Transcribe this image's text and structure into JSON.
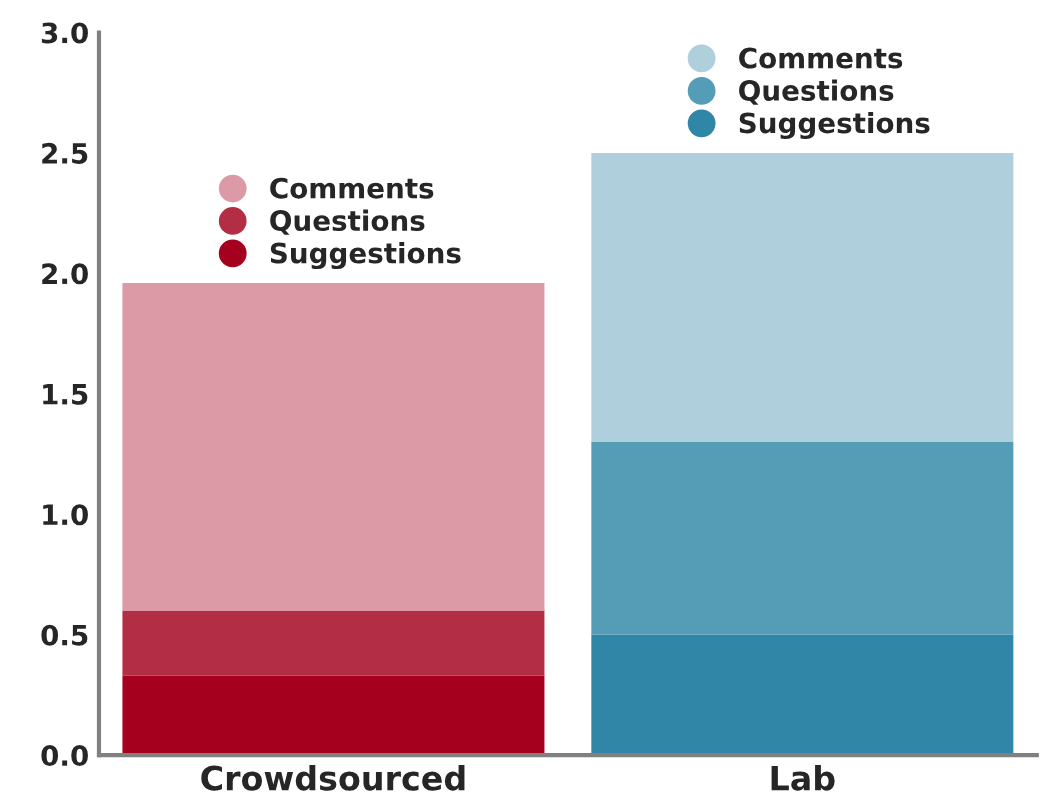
{
  "chart_data": {
    "type": "bar",
    "stacked": true,
    "categories": [
      "Crowdsourced",
      "Lab"
    ],
    "series": [
      {
        "name": "Suggestions",
        "color": "#a5001e",
        "values": [
          0.33,
          null
        ]
      },
      {
        "name": "Questions",
        "color": "#b32d45",
        "values": [
          0.27,
          null
        ]
      },
      {
        "name": "Comments",
        "color": "#dc99a6",
        "values": [
          1.36,
          null
        ]
      },
      {
        "name": "Suggestions",
        "color": "#3086a6",
        "values": [
          null,
          0.5
        ]
      },
      {
        "name": "Questions",
        "color": "#559db7",
        "values": [
          null,
          0.8
        ]
      },
      {
        "name": "Comments",
        "color": "#aecfdb",
        "values": [
          null,
          1.2
        ]
      }
    ],
    "ylim": [
      0,
      3
    ],
    "yticks": [
      {
        "value": 0,
        "label": "0.0"
      },
      0.5,
      {
        "value": 1,
        "label": "1.0"
      },
      1.5,
      {
        "value": 2,
        "label": "2.0"
      },
      2.5,
      {
        "value": 3,
        "label": "3.0"
      }
    ],
    "grid": false,
    "legend": "top",
    "marker": "circle"
  }
}
